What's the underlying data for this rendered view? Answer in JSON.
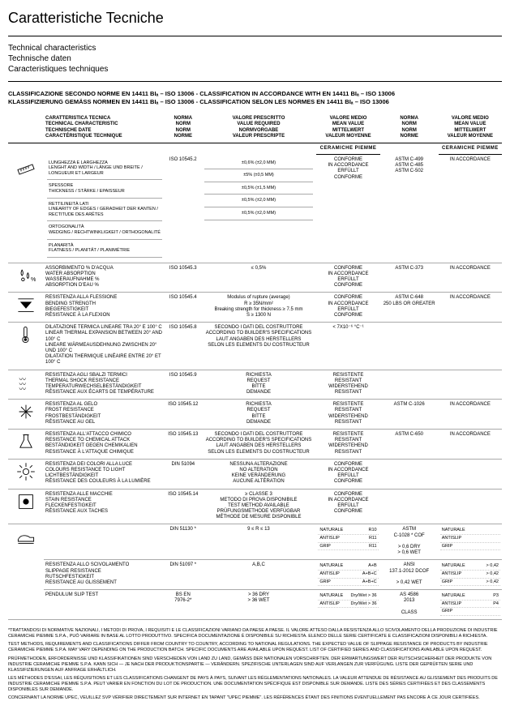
{
  "title": "Caratteristiche Tecniche",
  "subtitles": [
    "Technical characteristics",
    "Technische daten",
    "Caracteristiques techniques"
  ],
  "class_lines": [
    "CLASSIFICAZIONE SECONDO NORME EN 14411 BIₐ – ISO 13006 - CLASSIFICATION IN ACCORDANCE WITH EN 14411 BIₐ – ISO 13006",
    "KLASSIFIZIERUNG GEMÄSS NORMEN EN 14411 BIₐ – ISO 13006 - CLASSIFICATION SELON LES NORMES EN 14411 BIₐ – ISO 13006"
  ],
  "brand": "CERAMICHE PIEMME",
  "headers": {
    "h0": "",
    "h1": "CARATTERISTICA TECNICA\nTECHNICAL CHARACTERISTIC\nTECHNISCHE DATE\nCARACTÉRISTIQUE TECHNIQUE",
    "h2": "NORMA\nNORM\nNORM\nNORME",
    "h3": "VALORE PRESCRITTO\nVALUE REQUIRED\nNORMVORGABE\nVALEUR PRESCRIPTE",
    "h4": "VALORE MEDIO\nMEAN VALUE\nMITTELWERT\nVALEUR MOYENNE",
    "h5": "NORMA\nNORM\nNORM\nNORME",
    "h6": "VALORE MEDIO\nMEAN VALUE\nMITTELWERT\nVALEUR MOYENNE"
  },
  "rows": [
    {
      "icon": "ruler",
      "desc_rows": [
        {
          "d": "LUNGHEZZA E LARGHEZZA\nLENGHT AND WIDTH / LÄNGE UND BREITE / LONGUEUR ET LARGEUR",
          "v3": "±0,6% (±2,0 MM)"
        },
        {
          "d": "SPESSORE\nTHICKNESS / STÄRKE / EPAISSEUR",
          "v3": "±5% (±0,5 MM)"
        },
        {
          "d": "RETTILINEITÀ LATI\nLINEARITY OF EDGES / GERADHEIT DER KANTEN / RECTITUDE DES ARÊTES",
          "v3": "±0,5% (±1,5 MM)"
        },
        {
          "d": "ORTOGONALITÀ\nWEDGING / RECHTWINKLIGKEIT / ORTHOGONALITÉ",
          "v3": "±0,5% (±2,0 MM)"
        },
        {
          "d": "PLANARITÀ\nFLATNESS / PLANITÄT / PLANIMÉTRIE",
          "v3": "±0,5% (±2,0 MM)"
        }
      ],
      "c2": "ISO 10545.2",
      "c4": "CONFORME\nIN ACCORDANCE\nERFÜLLT\nCONFORME",
      "c5": "ASTM C-499\nASTM C-485\nASTM C-502",
      "c6": "IN ACCORDANCE"
    },
    {
      "icon": "drops",
      "desc": "ASSORBIMENTO % D'ACQUA\nWATER ABSORPTION\nWASSERAUFNAHME %\nABSORPTION D'EAU %",
      "c2": "ISO 10545.3",
      "c3": "≤ 0,5%",
      "c4": "CONFORME\nIN ACCORDANCE\nERFÜLLT\nCONFORME",
      "c5": "ASTM C-373",
      "c6": "IN ACCORDANCE"
    },
    {
      "icon": "flex",
      "desc": "RESISTENZA ALLA FLESSIONE\nBENDING STRENGTH\nBIEGEFESTIGKEIT\nRÉSISTANCE À LA FLEXION",
      "c2": "ISO 10545.4",
      "c3": "Modulus of rupture (average)\nR ≥ 35N/mm²\nBreaking strength for thickness ≥ 7.5 mm\nS ≥ 1300 N",
      "c4": "CONFORME\nIN ACCORDANCE\nERFÜLLT\nCONFORME",
      "c5": "ASTM C-648\n250 LBS OR GREATER",
      "c6": "IN ACCORDANCE"
    },
    {
      "icon": "thermo",
      "desc": "DILATAZIONE TERMICA LINEARE TRA 20° E 100° C\nLINEAR THERMAL EXPANSION BETWEEN 20° AND 100° C\nLINEARE WÄRMEAUSDEHNUNG ZWISCHEN 20° UND 100° C\nDILATATION THERMIQUE LINÉAIRE ENTRE 20° ET 100° C",
      "c2": "ISO 10545.8",
      "c3": "SECONDO I DATI DEL COSTRUTTORE\nACCORDING TO BUILDER'S SPECIFICATIONS\nLAUT ANGABEN DES HERSTELLERS\nSELON LES ELEMENTS DU COSTRUCTEUR",
      "c4": "< 7X10⁻⁶ °C⁻¹",
      "c5": "",
      "c6": ""
    },
    {
      "icon": "waves",
      "desc": "RESISTENZA AGLI SBALZI TERMICI\nTHERMAL SHOCK RESISTANCE\nTEMPERATURWECHSELBESTÄNDIGKEIT\nRÉSISTANCE AUX ÉCARTS DE TEMPÉRATURE",
      "c2": "ISO 10545.9",
      "c3": "RICHIESTA\nREQUEST\nBITTE\nDEMANDE",
      "c4": "RESISTENTE\nRESISTANT\nWIDERSTEHEND\nRESISTANT",
      "c5": "",
      "c6": ""
    },
    {
      "icon": "snow",
      "desc": "RESISTENZA AL GELO\nFROST RESISTANCE\nFROSTBESTÄNDIGKEIT\nRÉSISTANCE AU GEL",
      "c2": "ISO 10545.12",
      "c3": "RICHIESTA\nREQUEST\nBITTE\nDEMANDE",
      "c4": "RESISTENTE\nRESISTANT\nWIDERSTEHEND\nRESISTANT",
      "c5": "ASTM C-1026",
      "c6": "IN ACCORDANCE"
    },
    {
      "icon": "flask",
      "desc": "RESISTENZA ALL'ATTACCO CHIMICO\nRESISTANCE TO CHEMICAL ATTACK\nBESTÄNDIGKEIT GEGEN CHEMIKALIEN\nRESISTANCE À L'ATTAQUE CHIMIQUE",
      "c2": "ISO 10545.13",
      "c3": "SECONDO I DATI DEL COSTRUTTORE\nACCORDING TO BUILDER'S SPECIFICATIONS\nLAUT ANGABEN DES HERSTELLERS\nSELON LES ELEMENTS DU COSTRUCTEUR",
      "c4": "RESISTENTE\nRESISTANT\nWIDERSTEHEND\nRESISTANT",
      "c5": "ASTM C-650",
      "c6": "IN ACCORDANCE"
    },
    {
      "icon": "sun",
      "desc": "RESISTENZA DEI COLORI ALLA LUCE\nCOLOURS RESISTANCE TO LIGHT\nLICHTBESTÄNDIGKEIT\nRÉSISTANCE DES COULEURS À LA LUMIÈRE",
      "c2": "DIN 51094",
      "c3": "NESSUNA ALTERAZIONE\nNO ALTERATION\nKEINE VERÄNDERUNG\nAUCUNE ALTÉRATION",
      "c4": "CONFORME\nIN ACCORDANCE\nERFÜLLT\nCONFORME",
      "c5": "",
      "c6": ""
    },
    {
      "icon": "stain",
      "desc": "RESISTENZA ALLE MACCHIE\nSTAIN RESISTANCE\nFLECKENFESTIGKEIT\nRÉSISTANCE AUX TACHES",
      "c2": "ISO 10545.14",
      "c3": "≥ CLASSE 3\nMETODO DI PROVA DISPONIBILE\nTEST METHOD AVAILABLE\nPRÜFUNGSMETHODE VERFÜGBAR\nMÉTHODE DE MESURE DISPONIBLE",
      "c4": "CONFORME\nIN ACCORDANCE\nERFÜLLT\nCONFORME",
      "c5": "",
      "c6": ""
    }
  ],
  "slip": {
    "icon": "shoe",
    "desc": "RESISTENZA ALLO SCIVOLAMENTO\nSLIPPAGE RESISTANCE\nRUTSCHFESTIGKEIT\nRESISTANCE AU GLISSEMENT",
    "blocks": [
      {
        "norm": "DIN 51130 *",
        "v3": "9 ≤ R ≤ 13",
        "c4": [
          [
            "NATURALE",
            "R10"
          ],
          [
            "ANTISLIP",
            "R11"
          ],
          [
            "GRIP",
            "R11"
          ]
        ],
        "c5": "ASTM\nC-1028 * COF\n\n> 0,6 DRY\n> 0,6 WET",
        "c6": [
          [
            "NATURALE",
            ""
          ],
          [
            "ANTISLIP",
            ""
          ],
          [
            "GRIP",
            ""
          ]
        ]
      },
      {
        "norm": "DIN 51097 *",
        "v3": "A,B,C",
        "c4": [
          [
            "NATURALE",
            "A+B"
          ],
          [
            "ANTISLIP",
            "A+B+C"
          ],
          [
            "GRIP",
            "A+B+C"
          ]
        ],
        "c5": "ANSI\n137.1-2012 DCOF\n\n> 0,42 WET",
        "c6": [
          [
            "NATURALE",
            "> 0,42"
          ],
          [
            "ANTISLIP",
            "> 0,42"
          ],
          [
            "GRIP",
            "> 0,42"
          ]
        ]
      },
      {
        "norm": "BS EN\n7976-2*",
        "desc": "PENDULUM SLIP TEST",
        "v3": "> 36 DRY\n> 36 WET",
        "c4": [
          [
            "NATURALE",
            "Dry/Wet > 36"
          ],
          [
            "ANTISLIP",
            "Dry/Wet > 36"
          ]
        ],
        "c5": "AS 4586\n2013\n\nCLASS",
        "c6": [
          [
            "NATURALE",
            "P3"
          ],
          [
            "ANTISLIP",
            "P4"
          ],
          [
            "GRIP",
            ""
          ]
        ]
      }
    ]
  },
  "foot": [
    "*TRATTANDOSI DI NORMATIVE NAZIONALI, I METODI DI PROVA, I REQUISITI E LE CLASSIFICAZIONI VARIANO DA PAESE A PAESE. IL VALORE ATTESO DALLA RESISTENZA ALLO SCIVOLAMENTO DELLA PRODUZIONE DI INDUSTRIE CERAMICHE PIEMME S.P.A., PUÒ VARIARE IN BASE AL LOTTO PRODUTTIVO. SPECIFICA DOCUMENTAZIONE È DISPONIBILE SU RICHIESTA. ELENCO DELLE SERIE CERTIFICATE E CLASSIFICAZIONI DISPONIBILI A RICHIESTA.",
    "TEST METHODS, REQUIREMENTS AND CLASSIFICATIONS DIFFER FROM COUNTRY TO COUNTRY, ACCORDING TO NATIONAL REGULATIONS. THE EXPECTED VALUE OF SLIPPAGE RESISTANCE OF PRODUCTS BY INDUSTRIE CERAMICHE PIEMME S.P.A. MAY VARY DEPENDING ON THE PRODUCTION BATCH. SPECIFIC DOCUMENTS ARE AVAILABLE UPON REQUEST. LIST OF CERTIFIED SERIES AND CLASSIFICATIONS AVAILABLE UPON REQUEST.",
    "PRÜFMETHODEN, ERFORDERNISSE UND KLASSIFIKATIONEN SIND VERSCHIEDEN VON LAND ZU LAND, GEMÄSS DER NATIONALEN VORSCHRIFTEN. DER ERWARTUNGSWERT DER RUTSCHSICHERHEIT DER PRODUKTE VON INDUSTRIE CERAMICHE PIEMME S.P.A. KANN SICH — JE NACH DER PRODUKTIONSPARTIE — VERÄNDERN. SPEZIFISCHE UNTERLAGEN SIND AUF VERLANGEN ZUR VERFÜGUNG. LISTE DER GEPRÜFTEN SERIE UND KLASSIFIZIERUNGEN AUF ANFRAGE ERHÄLTLICH.",
    "LES MÉTHODES D'ESSAI, LES RÉQUISITIONS ET LES CLASSIFICATIONS CHANGENT DE PAYS À PAYS, SUIVANT LES RÉGLEMENTATIONS NATIONALES. LA VALEUR ATTENDUE DE RÉSISTANCE AU GLISSEMENT DES PRODUITS DE INDUSTRIE CERAMICHE PIEMME S.P.A. PEUT VARIER EN FONCTION DU LOT DE PRODUCTION. UNE DOCUMENTATION SPÉCIFIQUE EST DISPONIBLE SUR DEMANDE. LISTE DES SÉRIES CERTIFIÉES ET DES CLASSEMENTS DISPONIBLES SUR DEMANDE.",
    "CONCERNANT LA NORME UPEC, VEUILLEZ SVP VÉRIFIER DIRECTEMENT SUR INTERNET EN TAPANT \"UPEC PIEMME\". LES RÉFÉRENCES ÉTANT DES FINITIONS ÉVENTUELLEMENT PAS ENCORE À CE JOUR CERTIFIÉES."
  ]
}
